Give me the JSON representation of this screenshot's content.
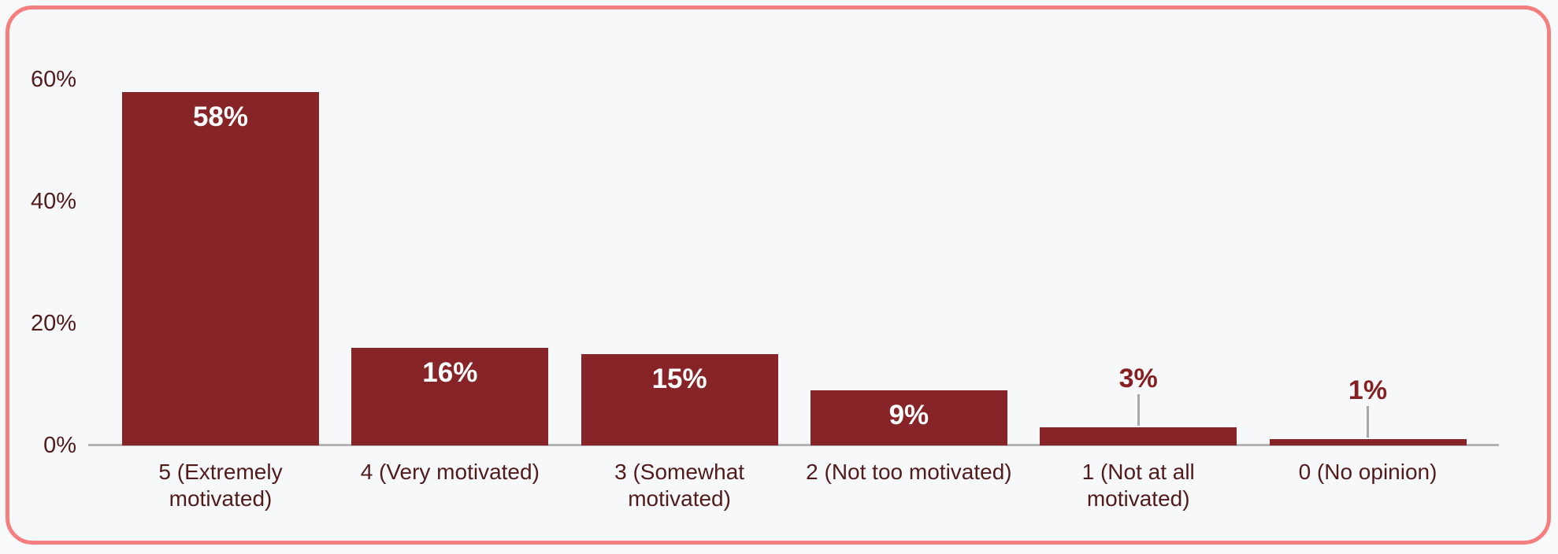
{
  "card": {
    "border_color": "#f57f7f",
    "background_color": "#f7f8fa"
  },
  "chart_data": {
    "type": "bar",
    "title": "",
    "xlabel": "",
    "ylabel": "",
    "categories": [
      "5 (Extremely motivated)",
      "4 (Very motivated)",
      "3 (Somewhat motivated)",
      "2 (Not too motivated)",
      "1 (Not at all motivated)",
      "0 (No opinion)"
    ],
    "category_lines": [
      [
        "5 (Extremely",
        "motivated)"
      ],
      [
        "4 (Very motivated)"
      ],
      [
        "3 (Somewhat",
        "motivated)"
      ],
      [
        "2 (Not too motivated)"
      ],
      [
        "1 (Not at all",
        "motivated)"
      ],
      [
        "0 (No opinion)"
      ]
    ],
    "values": [
      58,
      16,
      15,
      9,
      3,
      1
    ],
    "value_labels": [
      "58%",
      "16%",
      "15%",
      "9%",
      "3%",
      "1%"
    ],
    "value_label_placement": [
      "inside",
      "inside",
      "inside",
      "inside",
      "above",
      "above"
    ],
    "ylim": [
      0,
      60
    ],
    "yticks": [
      {
        "value": 0,
        "label": "0%"
      },
      {
        "value": 20,
        "label": "20%"
      },
      {
        "value": 40,
        "label": "40%"
      },
      {
        "value": 60,
        "label": "60%"
      }
    ],
    "grid": false,
    "legend": false,
    "bar_color": "#862428",
    "axis_text_color": "#521b1b",
    "value_label_inside_color": "#ffffff",
    "value_label_above_color": "#851f22",
    "axis_line_color": "#b3b3b6",
    "connector_color": "#a8a8ab"
  }
}
